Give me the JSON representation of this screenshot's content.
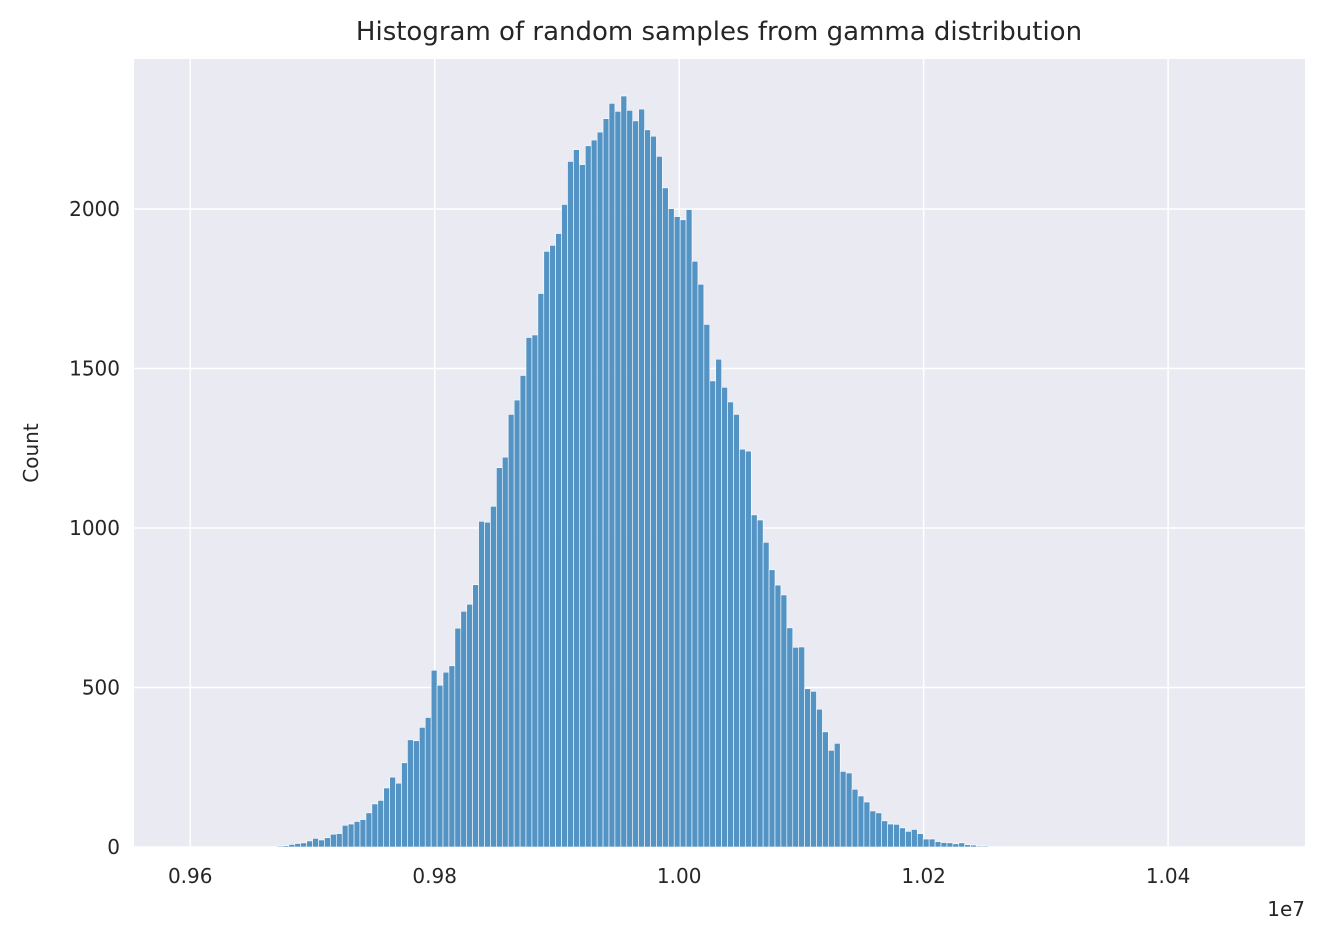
{
  "chart_data": {
    "type": "bar",
    "title": "Histogram of random samples from gamma distribution",
    "xlabel": "",
    "ylabel": "Count",
    "x_offset_label": "1e7",
    "xlim": [
      9554000,
      10512000
    ],
    "ylim": [
      0,
      2470
    ],
    "xticks": [
      9600000,
      9800000,
      10000000,
      10200000,
      10400000
    ],
    "xtick_labels": [
      "0.96",
      "0.98",
      "1.00",
      "1.02",
      "1.04"
    ],
    "yticks": [
      0,
      500,
      1000,
      1500,
      2000
    ],
    "ytick_labels": [
      "0",
      "500",
      "1000",
      "1500",
      "2000"
    ],
    "grid": true,
    "bar_color": "#4c8fc2",
    "background_color": "#eaeaf2",
    "grid_color": "#ffffff",
    "bin_start": 9671000,
    "bin_width": 4850,
    "values": [
      3,
      4,
      8,
      11,
      13,
      19,
      27,
      22,
      29,
      40,
      42,
      68,
      72,
      80,
      86,
      107,
      135,
      146,
      185,
      219,
      200,
      264,
      336,
      333,
      375,
      406,
      554,
      507,
      548,
      568,
      686,
      739,
      761,
      822,
      1021,
      1018,
      1068,
      1189,
      1222,
      1356,
      1401,
      1478,
      1597,
      1605,
      1735,
      1867,
      1886,
      1923,
      2014,
      2149,
      2186,
      2139,
      2198,
      2216,
      2241,
      2283,
      2331,
      2306,
      2354,
      2309,
      2276,
      2313,
      2248,
      2228,
      2165,
      2066,
      2001,
      1976,
      1966,
      1998,
      1836,
      1764,
      1638,
      1461,
      1529,
      1441,
      1395,
      1356,
      1247,
      1241,
      1041,
      1025,
      955,
      869,
      821,
      790,
      687,
      626,
      627,
      496,
      488,
      432,
      361,
      303,
      325,
      237,
      232,
      181,
      160,
      141,
      113,
      107,
      82,
      72,
      71,
      60,
      49,
      55,
      42,
      25,
      25,
      17,
      14,
      13,
      10,
      13,
      7,
      6,
      3,
      3,
      2,
      2
    ]
  }
}
